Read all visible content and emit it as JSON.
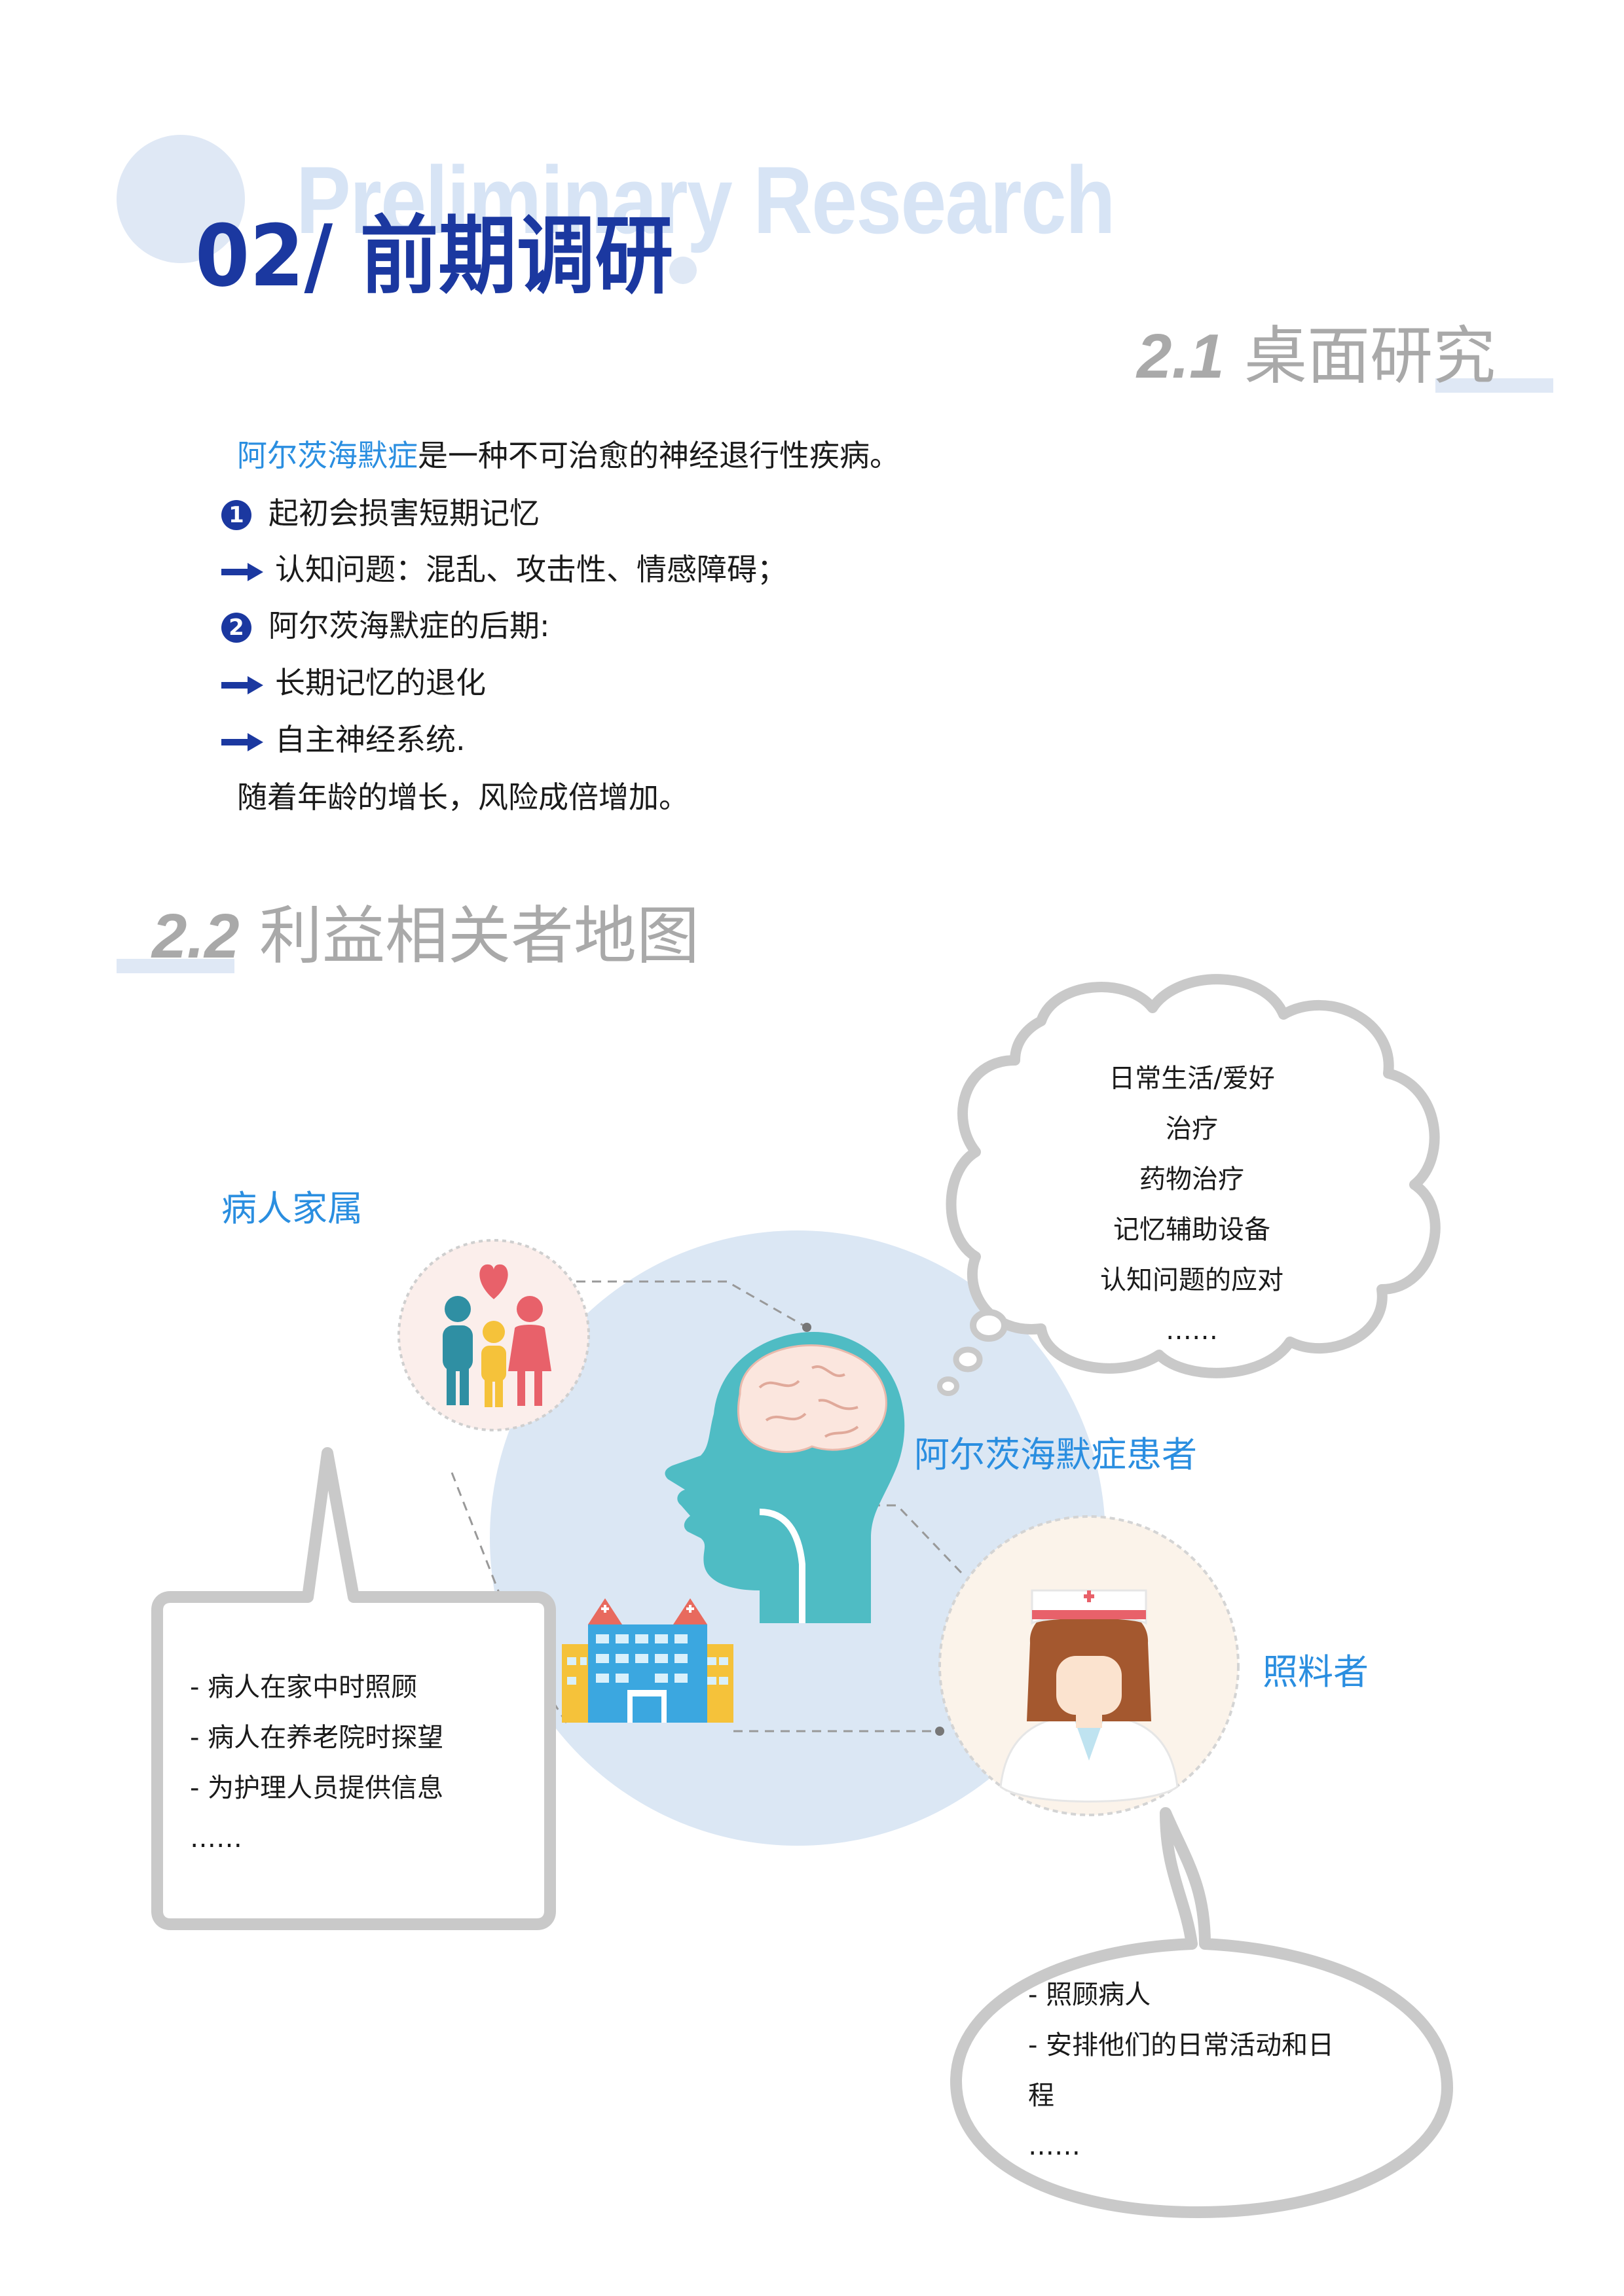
{
  "header": {
    "background_text": "Preliminary Research",
    "title": "02/ 前期调研"
  },
  "section_1": {
    "number": "2.1",
    "title": "桌面研究"
  },
  "intro": {
    "highlight": "阿尔茨海默症",
    "rest": "是一种不可治愈的神经退行性疾病。"
  },
  "points": [
    {
      "marker": "1",
      "text": "起初会损害短期记忆"
    },
    {
      "marker": "arrow",
      "text": "认知问题：混乱、攻击性、情感障碍；"
    },
    {
      "marker": "2",
      "text": "阿尔茨海默症的后期:"
    },
    {
      "marker": "arrow",
      "text": "长期记忆的退化"
    },
    {
      "marker": "arrow",
      "text": "自主神经系统."
    }
  ],
  "closing": "随着年龄的增长，风险成倍增加。",
  "section_2": {
    "number": "2.2",
    "title": "利益相关者地图"
  },
  "map": {
    "patient_label": "阿尔茨海默症患者",
    "family_label": "病人家属",
    "caregiver_label": "照料者",
    "patient_needs": [
      "日常生活/爱好",
      "治疗",
      "药物治疗",
      "记忆辅助设备",
      "认知问题的应对",
      "……"
    ],
    "family_roles": [
      "- 病人在家中时照顾",
      "- 病人在养老院时探望",
      "- 为护理人员提供信息",
      "……"
    ],
    "caregiver_roles": [
      "- 照顾病人",
      "- 安排他们的日常活动和日",
      "程",
      "……"
    ]
  },
  "colors": {
    "title_blue": "#1b38a0",
    "accent_blue": "#2a8ee0",
    "light_blue": "#dfe8f5",
    "heading_gray": "#a9a9a9",
    "head_teal": "#4fbcc4"
  }
}
